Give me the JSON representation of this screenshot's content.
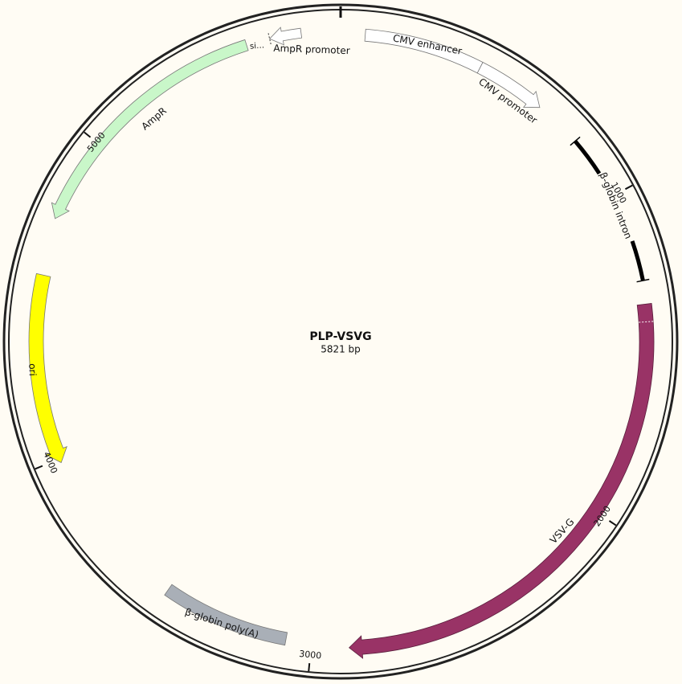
{
  "plasmid": {
    "name": "PLP-VSVG",
    "size": {
      "value": 5821,
      "label": "5821 bp"
    },
    "ticks": [
      1000,
      2000,
      3000,
      4000,
      5000
    ],
    "features": [
      {
        "label": "AmpR promoter"
      },
      {
        "label": "si…"
      },
      {
        "label": "AmpR"
      },
      {
        "label": "CMV enhancer"
      },
      {
        "label": "CMV promoter"
      },
      {
        "label": "β-globin intron"
      },
      {
        "label": "VSV-G"
      },
      {
        "label": "β-globin poly(A)"
      },
      {
        "label": "ori"
      }
    ]
  }
}
